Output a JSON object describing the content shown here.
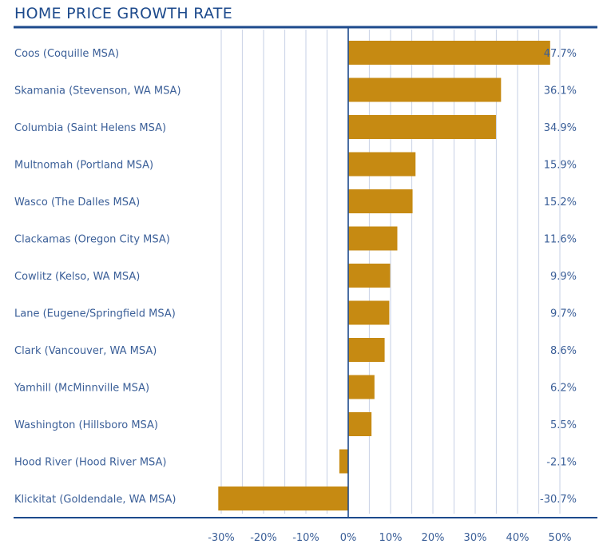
{
  "chart_data": {
    "type": "bar",
    "orientation": "horizontal",
    "title": "HOME PRICE GROWTH RATE",
    "xlabel": "",
    "ylabel": "",
    "categories": [
      "Coos (Coquille MSA)",
      "Skamania (Stevenson, WA MSA)",
      "Columbia (Saint Helens MSA)",
      "Multnomah (Portland MSA)",
      "Wasco (The Dalles MSA)",
      "Clackamas (Oregon City MSA)",
      "Cowlitz (Kelso, WA MSA)",
      "Lane (Eugene/Springfield MSA)",
      "Clark (Vancouver, WA MSA)",
      "Yamhill (McMinnville MSA)",
      "Washington (Hillsboro MSA)",
      "Hood River (Hood River MSA)",
      "Klickitat (Goldendale, WA MSA)"
    ],
    "values": [
      47.7,
      36.1,
      34.9,
      15.9,
      15.2,
      11.6,
      9.9,
      9.7,
      8.6,
      6.2,
      5.5,
      -2.1,
      -30.7
    ],
    "value_labels": [
      "47.7%",
      "36.1%",
      "34.9%",
      "15.9%",
      "15.2%",
      "11.6%",
      "9.9%",
      "9.7%",
      "8.6%",
      "6.2%",
      "5.5%",
      "-2.1%",
      "-30.7%"
    ],
    "xlim": [
      -30,
      50
    ],
    "xticks": [
      -30,
      -20,
      -10,
      0,
      10,
      20,
      30,
      40,
      50
    ],
    "xtick_labels": [
      "-30%",
      "-20%",
      "-10%",
      "0%",
      "10%",
      "20%",
      "30%",
      "40%",
      "50%"
    ],
    "grid": true,
    "minor_grid_step": 5,
    "legend": "none",
    "colors": {
      "bar": "#c68a12",
      "text": "#3b5f98",
      "title": "#1d4a8c",
      "axis": "#1d4a8c",
      "grid": "#cfd7e8"
    }
  }
}
